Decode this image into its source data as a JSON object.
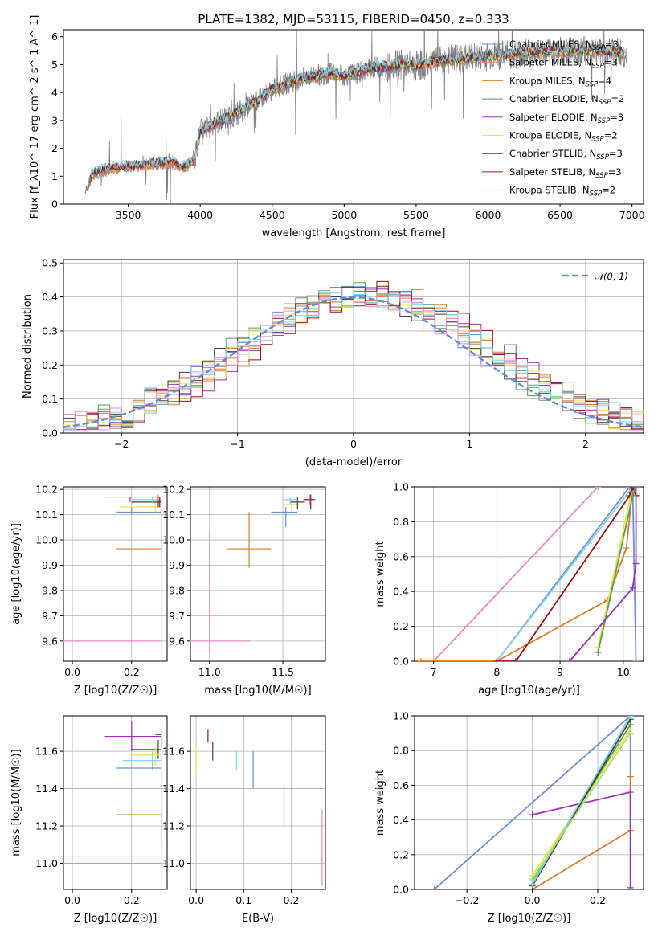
{
  "figure": {
    "title": "PLATE=1382, MJD=53115, FIBERID=0450, z=0.333"
  },
  "colors": {
    "data": "#808080",
    "Chabrier MILES": "#6a8fd8",
    "Salpeter MILES": "#e07b54",
    "Kroupa MILES": "#d97f2a",
    "Chabrier ELODIE": "#5a9a5a",
    "Salpeter ELODIE": "#9b30b0",
    "Kroupa ELODIE": "#e6e64a",
    "Chabrier STELIB": "#404040",
    "Salpeter STELIB": "#9b1010",
    "Kroupa STELIB": "#7fd4e8",
    "pink": "#e88ac0",
    "lime": "#a8e060",
    "gauss": "#5b8ed8"
  },
  "chart_data": [
    {
      "id": "spectrum",
      "type": "line",
      "title": "PLATE=1382, MJD=53115, FIBERID=0450, z=0.333",
      "xlabel": "wavelength [Angstrom, rest frame]",
      "ylabel": "Flux [f_λ10^-17 erg cm^-2 s^-1 A^-1]",
      "xlim": [
        3050,
        7080
      ],
      "ylim": [
        0,
        6.25
      ],
      "xticks": [
        3500,
        4000,
        4500,
        5000,
        5500,
        6000,
        6500,
        7000
      ],
      "yticks": [
        0,
        1,
        2,
        3,
        4,
        5,
        6
      ],
      "grid": false,
      "legend_position": "top-right",
      "continuum": {
        "x": [
          3200,
          3250,
          3400,
          3500,
          3600,
          3700,
          3800,
          3900,
          3960,
          4000,
          4100,
          4200,
          4300,
          4400,
          4500,
          4600,
          4700,
          4800,
          4900,
          5000,
          5100,
          5200,
          5300,
          5400,
          5500,
          5600,
          5700,
          5800,
          5900,
          6000,
          6200,
          6400,
          6600,
          6800,
          6950
        ],
        "y": [
          0.4,
          1.1,
          1.3,
          1.35,
          1.4,
          1.45,
          1.5,
          1.35,
          1.6,
          2.6,
          2.9,
          3.1,
          3.4,
          3.7,
          4.1,
          4.3,
          4.5,
          4.6,
          4.7,
          4.6,
          4.7,
          4.9,
          4.9,
          5.0,
          4.95,
          5.05,
          5.15,
          5.2,
          5.25,
          5.3,
          5.4,
          5.45,
          5.5,
          5.5,
          5.4
        ]
      },
      "series": [
        {
          "name": "Chabrier MILES, N_SSP=3",
          "legend_label": "Chabrier MILES, N",
          "legend_sub": "SSP",
          "legend_tail": "=3"
        },
        {
          "name": "Salpeter MILES, N_SSP=3",
          "legend_label": "Salpeter MILES, N",
          "legend_sub": "SSP",
          "legend_tail": "=3"
        },
        {
          "name": "Kroupa MILES, N_SSP=4",
          "legend_label": "Kroupa MILES, N",
          "legend_sub": "SSP",
          "legend_tail": "=4"
        },
        {
          "name": "Chabrier ELODIE, N_SSP=2",
          "legend_label": "Chabrier ELODIE, N",
          "legend_sub": "SSP",
          "legend_tail": "=2"
        },
        {
          "name": "Salpeter ELODIE, N_SSP=3",
          "legend_label": "Salpeter ELODIE, N",
          "legend_sub": "SSP",
          "legend_tail": "=3"
        },
        {
          "name": "Kroupa ELODIE, N_SSP=2",
          "legend_label": "Kroupa ELODIE, N",
          "legend_sub": "SSP",
          "legend_tail": "=2"
        },
        {
          "name": "Chabrier STELIB, N_SSP=3",
          "legend_label": "Chabrier STELIB, N",
          "legend_sub": "SSP",
          "legend_tail": "=3"
        },
        {
          "name": "Salpeter STELIB, N_SSP=3",
          "legend_label": "Salpeter STELIB, N",
          "legend_sub": "SSP",
          "legend_tail": "=3"
        },
        {
          "name": "Kroupa STELIB, N_SSP=2",
          "legend_label": "Kroupa STELIB, N",
          "legend_sub": "SSP",
          "legend_tail": "=2"
        }
      ]
    },
    {
      "id": "residuals",
      "type": "line",
      "xlabel": "(data-model)/error",
      "ylabel": "Normed distribution",
      "xlim": [
        -2.5,
        2.5
      ],
      "ylim": [
        0,
        0.51
      ],
      "xticks": [
        -2,
        -1,
        0,
        1,
        2
      ],
      "xtick_labels": [
        "−2",
        "−1",
        "0",
        "1",
        "2"
      ],
      "yticks": [
        0.0,
        0.1,
        0.2,
        0.3,
        0.4,
        0.5
      ],
      "ytick_labels": [
        "0.0",
        "0.1",
        "0.2",
        "0.3",
        "0.4",
        "0.5"
      ],
      "grid": true,
      "legend_position": "top-right",
      "legend_label": "𝒩(0, 1)",
      "bin_width": 0.1,
      "bin_start": -2.5
    },
    {
      "id": "age_vs_Z",
      "type": "scatter",
      "xlabel": "Z [log10(Z/Z☉)]",
      "ylabel": "age [log10(age/yr)]",
      "xlim": [
        -0.03,
        0.32
      ],
      "ylim": [
        9.52,
        10.21
      ],
      "xticks": [
        0.0,
        0.2
      ],
      "xtick_labels": [
        "0.0",
        "0.2"
      ],
      "yticks": [
        9.6,
        9.7,
        9.8,
        9.9,
        10.0,
        10.1,
        10.2
      ],
      "ytick_labels": [
        "9.6",
        "9.7",
        "9.8",
        "9.9",
        "10.0",
        "10.1",
        "10.2"
      ],
      "grid": true,
      "points": [
        {
          "c": "Salpeter ELODIE",
          "x": 0.195,
          "y": 10.17,
          "xlo": 0.11,
          "xhi": 0.3,
          "ylo": 10.15,
          "yhi": 10.17
        },
        {
          "c": "Chabrier MILES",
          "x": 0.2,
          "y": 10.11,
          "xlo": 0.15,
          "xhi": 0.3,
          "ylo": 10.1,
          "yhi": 10.13
        },
        {
          "c": "Kroupa ELODIE",
          "x": 0.28,
          "y": 10.13,
          "xlo": 0.16,
          "xhi": 0.3,
          "ylo": 10.11,
          "yhi": 10.16
        },
        {
          "c": "Chabrier STELIB",
          "x": 0.29,
          "y": 10.15,
          "xlo": 0.2,
          "xhi": 0.3,
          "ylo": 10.13,
          "yhi": 10.17
        },
        {
          "c": "Kroupa STELIB",
          "x": 0.27,
          "y": 10.16,
          "xlo": 0.2,
          "xhi": 0.3,
          "ylo": 10.15,
          "yhi": 10.17
        },
        {
          "c": "Salpeter MILES",
          "x": 0.29,
          "y": 10.17,
          "xlo": 0.27,
          "xhi": 0.3,
          "ylo": 10.16,
          "yhi": 10.18
        },
        {
          "c": "Salpeter STELIB",
          "x": 0.295,
          "y": 10.15,
          "xlo": 0.29,
          "xhi": 0.3,
          "ylo": 10.13,
          "yhi": 10.17
        },
        {
          "c": "Kroupa MILES",
          "x": 0.3,
          "y": 9.965,
          "xlo": 0.15,
          "xhi": 0.3,
          "ylo": 9.89,
          "yhi": 10.11
        },
        {
          "c": "pink",
          "x": 0.3,
          "y": 9.6,
          "xlo": -0.03,
          "xhi": 0.3,
          "ylo": 9.55,
          "yhi": 10.16
        }
      ]
    },
    {
      "id": "age_vs_mass",
      "type": "scatter",
      "xlabel": "mass [log10(M/M☉)]",
      "ylabel": "",
      "xlim": [
        10.87,
        11.79
      ],
      "ylim": [
        9.52,
        10.21
      ],
      "xticks": [
        11.0,
        11.5
      ],
      "xtick_labels": [
        "11.0",
        "11.5"
      ],
      "yticks": [
        9.6,
        9.7,
        9.8,
        9.9,
        10.0,
        10.1,
        10.2
      ],
      "ytick_labels": [
        "9.6",
        "9.7",
        "9.8",
        "9.9",
        "10.0",
        "10.1",
        "10.2"
      ],
      "grid": true,
      "points": [
        {
          "c": "Salpeter ELODIE",
          "x": 11.68,
          "y": 10.17,
          "xlo": 11.62,
          "xhi": 11.72,
          "ylo": 10.14,
          "yhi": 10.18
        },
        {
          "c": "Salpeter STELIB",
          "x": 11.69,
          "y": 10.16,
          "xlo": 11.64,
          "xhi": 11.72,
          "ylo": 10.12,
          "yhi": 10.18
        },
        {
          "c": "Chabrier MILES",
          "x": 11.52,
          "y": 10.11,
          "xlo": 11.42,
          "xhi": 11.6,
          "ylo": 10.05,
          "yhi": 10.13
        },
        {
          "c": "Kroupa ELODIE",
          "x": 11.56,
          "y": 10.14,
          "xlo": 11.5,
          "xhi": 11.62,
          "ylo": 10.11,
          "yhi": 10.16
        },
        {
          "c": "Chabrier STELIB",
          "x": 11.6,
          "y": 10.15,
          "xlo": 11.55,
          "xhi": 11.65,
          "ylo": 10.12,
          "yhi": 10.17
        },
        {
          "c": "Kroupa STELIB",
          "x": 11.55,
          "y": 10.16,
          "xlo": 11.5,
          "xhi": 11.6,
          "ylo": 10.14,
          "yhi": 10.17
        },
        {
          "c": "Kroupa MILES",
          "x": 11.27,
          "y": 9.965,
          "xlo": 11.12,
          "xhi": 11.42,
          "ylo": 9.89,
          "yhi": 10.11
        },
        {
          "c": "pink",
          "x": 11.0,
          "y": 9.6,
          "xlo": 10.87,
          "xhi": 11.28,
          "ylo": 9.55,
          "yhi": 10.03
        }
      ]
    },
    {
      "id": "weight_vs_age",
      "type": "line",
      "xlabel": "age [log10(age/yr)]",
      "ylabel": "mass weight",
      "xlim": [
        6.7,
        10.32
      ],
      "ylim": [
        0,
        1.0
      ],
      "xticks": [
        7,
        8,
        9,
        10
      ],
      "xtick_labels": [
        "7",
        "8",
        "9",
        "10"
      ],
      "yticks": [
        0.0,
        0.2,
        0.4,
        0.6,
        0.8,
        1.0
      ],
      "ytick_labels": [
        "0.0",
        "0.2",
        "0.4",
        "0.6",
        "0.8",
        "1.0"
      ],
      "grid": true,
      "curves": [
        {
          "c": "pink",
          "x": [
            7.0,
            9.6
          ],
          "y": [
            0.0,
            1.0
          ]
        },
        {
          "c": "Kroupa MILES",
          "x": [
            6.8,
            8.0,
            9.75,
            10.05,
            10.15
          ],
          "y": [
            0.0,
            0.0,
            0.35,
            0.65,
            1.0
          ]
        },
        {
          "c": "Chabrier MILES",
          "x": [
            8.0,
            10.1,
            10.15,
            10.2
          ],
          "y": [
            0.0,
            1.0,
            0.98,
            0.0
          ]
        },
        {
          "c": "Kroupa STELIB",
          "x": [
            8.0,
            10.15,
            10.2
          ],
          "y": [
            0.0,
            1.0,
            0.95
          ]
        },
        {
          "c": "Salpeter STELIB",
          "x": [
            8.0,
            8.3,
            10.1,
            10.15,
            10.2
          ],
          "y": [
            0.0,
            0.0,
            0.95,
            1.0,
            0.95
          ]
        },
        {
          "c": "Kroupa ELODIE",
          "x": [
            9.6,
            10.1,
            10.2
          ],
          "y": [
            0.08,
            0.92,
            1.0
          ]
        },
        {
          "c": "Chabrier ELODIE",
          "x": [
            9.6,
            10.15,
            10.2
          ],
          "y": [
            0.05,
            0.95,
            1.0
          ]
        },
        {
          "c": "Salpeter ELODIE",
          "x": [
            9.15,
            10.15,
            10.2,
            10.2
          ],
          "y": [
            0.0,
            0.42,
            0.56,
            1.0
          ]
        }
      ]
    },
    {
      "id": "mass_vs_Z",
      "type": "scatter",
      "xlabel": "Z [log10(Z/Z☉)]",
      "ylabel": "mass [log10(M/M☉)]",
      "xlim": [
        -0.03,
        0.32
      ],
      "ylim": [
        10.86,
        11.79
      ],
      "xticks": [
        0.0,
        0.2
      ],
      "xtick_labels": [
        "0.0",
        "0.2"
      ],
      "yticks": [
        11.0,
        11.2,
        11.4,
        11.6
      ],
      "ytick_labels": [
        "11.0",
        "11.2",
        "11.4",
        "11.6"
      ],
      "grid": true,
      "points": [
        {
          "c": "Salpeter ELODIE",
          "x": 0.2,
          "y": 11.68,
          "xlo": 0.11,
          "xhi": 0.3,
          "ylo": 11.6,
          "yhi": 11.76
        },
        {
          "c": "Salpeter STELIB",
          "x": 0.3,
          "y": 11.69,
          "xlo": 0.28,
          "xhi": 0.3,
          "ylo": 11.62,
          "yhi": 11.72
        },
        {
          "c": "Chabrier STELIB",
          "x": 0.29,
          "y": 11.61,
          "xlo": 0.2,
          "xhi": 0.3,
          "ylo": 11.56,
          "yhi": 11.66
        },
        {
          "c": "Kroupa ELODIE",
          "x": 0.28,
          "y": 11.58,
          "xlo": 0.2,
          "xhi": 0.3,
          "ylo": 11.52,
          "yhi": 11.62
        },
        {
          "c": "Kroupa STELIB",
          "x": 0.27,
          "y": 11.55,
          "xlo": 0.17,
          "xhi": 0.3,
          "ylo": 11.5,
          "yhi": 11.6
        },
        {
          "c": "Chabrier MILES",
          "x": 0.3,
          "y": 11.51,
          "xlo": 0.15,
          "xhi": 0.3,
          "ylo": 11.44,
          "yhi": 11.58
        },
        {
          "c": "Kroupa MILES",
          "x": 0.3,
          "y": 11.26,
          "xlo": 0.15,
          "xhi": 0.3,
          "ylo": 11.1,
          "yhi": 11.42
        },
        {
          "c": "pink",
          "x": 0.3,
          "y": 11.0,
          "xlo": -0.03,
          "xhi": 0.3,
          "ylo": 10.9,
          "yhi": 11.3
        }
      ]
    },
    {
      "id": "mass_vs_ebv",
      "type": "scatter",
      "xlabel": "E(B-V)",
      "ylabel": "",
      "xlim": [
        -0.012,
        0.272
      ],
      "ylim": [
        10.86,
        11.79
      ],
      "xticks": [
        0.0,
        0.1,
        0.2
      ],
      "xtick_labels": [
        "0.0",
        "0.1",
        "0.2"
      ],
      "yticks": [
        11.0,
        11.2,
        11.4,
        11.6
      ],
      "ytick_labels": [
        "11.0",
        "11.2",
        "11.4",
        "11.6"
      ],
      "grid": true,
      "points": [
        {
          "c": "Kroupa ELODIE",
          "x": 0.0,
          "y": 11.58,
          "xlo": 0.0,
          "xhi": 0.0,
          "ylo": 11.48,
          "yhi": 11.64
        },
        {
          "c": "Salpeter STELIB",
          "x": 0.025,
          "y": 11.69,
          "xlo": 0.025,
          "xhi": 0.025,
          "ylo": 11.65,
          "yhi": 11.72
        },
        {
          "c": "Chabrier STELIB",
          "x": 0.035,
          "y": 11.6,
          "xlo": 0.035,
          "xhi": 0.035,
          "ylo": 11.55,
          "yhi": 11.65
        },
        {
          "c": "Kroupa STELIB",
          "x": 0.085,
          "y": 11.55,
          "xlo": 0.085,
          "xhi": 0.085,
          "ylo": 11.5,
          "yhi": 11.6
        },
        {
          "c": "Chabrier MILES",
          "x": 0.12,
          "y": 11.5,
          "xlo": 0.12,
          "xhi": 0.12,
          "ylo": 11.4,
          "yhi": 11.6
        },
        {
          "c": "Kroupa MILES",
          "x": 0.185,
          "y": 11.3,
          "xlo": 0.185,
          "xhi": 0.185,
          "ylo": 11.2,
          "yhi": 11.42
        },
        {
          "c": "pink",
          "x": 0.265,
          "y": 11.0,
          "xlo": 0.265,
          "xhi": 0.265,
          "ylo": 10.88,
          "yhi": 11.29
        }
      ]
    },
    {
      "id": "weight_vs_Z",
      "type": "line",
      "xlabel": "Z [log10(Z/Z☉)]",
      "ylabel": "mass weight",
      "xlim": [
        -0.36,
        0.34
      ],
      "ylim": [
        0,
        1.0
      ],
      "xticks": [
        -0.2,
        0.0,
        0.2
      ],
      "xtick_labels": [
        "−0.2",
        "0.0",
        "0.2"
      ],
      "yticks": [
        0.0,
        0.2,
        0.4,
        0.6,
        0.8,
        1.0
      ],
      "ytick_labels": [
        "0.0",
        "0.2",
        "0.4",
        "0.6",
        "0.8",
        "1.0"
      ],
      "grid": true,
      "curves": [
        {
          "c": "Chabrier MILES",
          "x": [
            -0.3,
            0.3,
            0.3
          ],
          "y": [
            0.0,
            1.0,
            0.0
          ]
        },
        {
          "c": "Kroupa MILES",
          "x": [
            -0.3,
            0.0,
            0.3,
            0.3
          ],
          "y": [
            0.0,
            0.0,
            0.34,
            0.65
          ]
        },
        {
          "c": "Salpeter ELODIE",
          "x": [
            0.0,
            0.3,
            0.3
          ],
          "y": [
            0.43,
            0.56,
            0.01
          ]
        },
        {
          "c": "Kroupa ELODIE",
          "x": [
            0.0,
            0.3
          ],
          "y": [
            0.08,
            0.92
          ]
        },
        {
          "c": "Chabrier ELODIE",
          "x": [
            0.0,
            0.3
          ],
          "y": [
            0.05,
            0.95
          ]
        },
        {
          "c": "Chabrier STELIB",
          "x": [
            0.0,
            0.3
          ],
          "y": [
            0.02,
            0.98
          ]
        },
        {
          "c": "Kroupa STELIB",
          "x": [
            0.0,
            0.3
          ],
          "y": [
            0.03,
            1.0
          ]
        },
        {
          "c": "lime",
          "x": [
            0.0,
            0.3
          ],
          "y": [
            0.06,
            0.9
          ]
        }
      ]
    }
  ]
}
